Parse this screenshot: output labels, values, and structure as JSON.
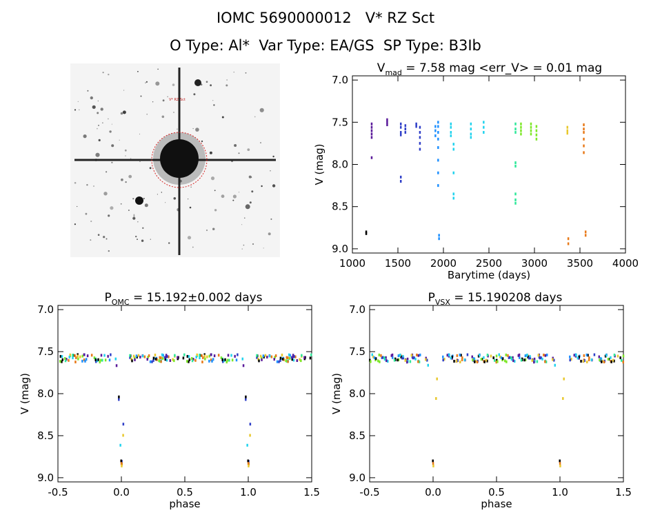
{
  "header": {
    "title_line1": "IOMC 5690000012   V* RZ Sct",
    "title_line2": "O Type: Al*  Var Type: EA/GS  SP Type: B3Ib"
  },
  "finder_chart": {
    "labels": [
      "V* RZ Sct"
    ]
  },
  "colors": {
    "series": [
      "#000000",
      "#5a1a9a",
      "#3040c8",
      "#1e90ff",
      "#22d3ee",
      "#2ee89a",
      "#7ee828",
      "#e8c82e",
      "#e87a1a"
    ]
  },
  "chart_data": [
    {
      "id": "lightcurve",
      "type": "scatter",
      "title": {
        "main": "V",
        "sub": "mad",
        "rest": " = 7.58 mag <err_V> = 0.01 mag"
      },
      "xlabel": "Barytime (days)",
      "ylabel": "V (mag)",
      "xlim": [
        1000,
        4000
      ],
      "ylim": [
        9.05,
        6.95
      ],
      "y_inverted": true,
      "xticks": [
        1000,
        1500,
        2000,
        2500,
        3000,
        3500,
        4000
      ],
      "yticks": [
        7.0,
        7.5,
        8.0,
        8.5,
        9.0
      ],
      "ytick_labels": [
        "7.0",
        "7.5",
        "8.0",
        "8.5",
        "9.0"
      ],
      "groups": [
        {
          "x": 1150,
          "color": 0,
          "v": [
            8.8,
            8.82
          ]
        },
        {
          "x": 1210,
          "color": 1,
          "v": [
            7.52,
            7.56,
            7.6,
            7.64,
            7.68,
            7.92
          ]
        },
        {
          "x": 1380,
          "color": 1,
          "v": [
            7.47,
            7.5,
            7.53
          ]
        },
        {
          "x": 1530,
          "color": 2,
          "v": [
            7.52,
            7.56,
            7.62,
            7.65,
            8.15,
            8.2
          ]
        },
        {
          "x": 1580,
          "color": 2,
          "v": [
            7.54,
            7.58,
            7.62
          ]
        },
        {
          "x": 1700,
          "color": 2,
          "v": [
            7.52,
            7.55
          ]
        },
        {
          "x": 1740,
          "color": 2,
          "v": [
            7.56,
            7.62,
            7.68,
            7.75,
            7.82
          ]
        },
        {
          "x": 1910,
          "color": 3,
          "v": [
            7.55,
            7.6,
            7.66
          ]
        },
        {
          "x": 1940,
          "color": 3,
          "v": [
            7.5,
            7.55,
            7.62,
            7.7,
            7.8,
            7.95,
            8.1,
            8.25
          ]
        },
        {
          "x": 1950,
          "color": 3,
          "v": [
            8.84,
            8.88
          ]
        },
        {
          "x": 2080,
          "color": 4,
          "v": [
            7.52,
            7.56,
            7.62,
            7.66
          ]
        },
        {
          "x": 2110,
          "color": 4,
          "v": [
            7.76,
            7.82,
            8.1,
            8.35,
            8.4
          ]
        },
        {
          "x": 2300,
          "color": 4,
          "v": [
            7.52,
            7.58,
            7.64,
            7.68
          ]
        },
        {
          "x": 2440,
          "color": 4,
          "v": [
            7.5,
            7.56,
            7.62
          ]
        },
        {
          "x": 2790,
          "color": 5,
          "v": [
            7.52,
            7.58,
            7.62,
            7.98,
            8.02,
            8.35,
            8.42,
            8.46
          ]
        },
        {
          "x": 2850,
          "color": 6,
          "v": [
            7.52,
            7.56,
            7.6,
            7.64
          ]
        },
        {
          "x": 2960,
          "color": 6,
          "v": [
            7.52,
            7.56,
            7.6,
            7.64
          ]
        },
        {
          "x": 3020,
          "color": 6,
          "v": [
            7.55,
            7.6,
            7.65,
            7.7
          ]
        },
        {
          "x": 3360,
          "color": 7,
          "v": [
            7.56,
            7.6,
            7.63
          ]
        },
        {
          "x": 3370,
          "color": 8,
          "v": [
            8.88,
            8.94
          ]
        },
        {
          "x": 3540,
          "color": 8,
          "v": [
            7.53,
            7.58,
            7.62,
            7.7,
            7.78,
            7.86
          ]
        },
        {
          "x": 3560,
          "color": 8,
          "v": [
            8.8,
            8.84
          ]
        }
      ]
    },
    {
      "id": "phase_omc",
      "type": "scatter",
      "title": {
        "main": "P",
        "sub": "OMC",
        "rest": " = 15.192±0.002 days"
      },
      "xlabel": "phase",
      "ylabel": "V (mag)",
      "xlim": [
        -0.5,
        1.5
      ],
      "ylim": [
        9.05,
        6.95
      ],
      "y_inverted": true,
      "xticks": [
        -0.5,
        0.0,
        0.5,
        1.0,
        1.5
      ],
      "xtick_labels": [
        "-0.5",
        "0.0",
        "0.5",
        "1.0",
        "1.5"
      ],
      "yticks": [
        7.0,
        7.5,
        8.0,
        8.5,
        9.0
      ],
      "ytick_labels": [
        "7.0",
        "7.5",
        "8.0",
        "8.5",
        "9.0"
      ],
      "period_days": 15.192
    },
    {
      "id": "phase_vsx",
      "type": "scatter",
      "title": {
        "main": "P",
        "sub": "VSX",
        "rest": " = 15.190208 days"
      },
      "xlabel": "phase",
      "ylabel": "V (mag)",
      "xlim": [
        -0.5,
        1.5
      ],
      "ylim": [
        9.05,
        6.95
      ],
      "y_inverted": true,
      "xticks": [
        -0.5,
        0.0,
        0.5,
        1.0,
        1.5
      ],
      "xtick_labels": [
        "-0.5",
        "0.0",
        "0.5",
        "1.0",
        "1.5"
      ],
      "yticks": [
        7.0,
        7.5,
        8.0,
        8.5,
        9.0
      ],
      "ytick_labels": [
        "7.0",
        "7.5",
        "8.0",
        "8.5",
        "9.0"
      ],
      "period_days": 15.190208
    }
  ]
}
